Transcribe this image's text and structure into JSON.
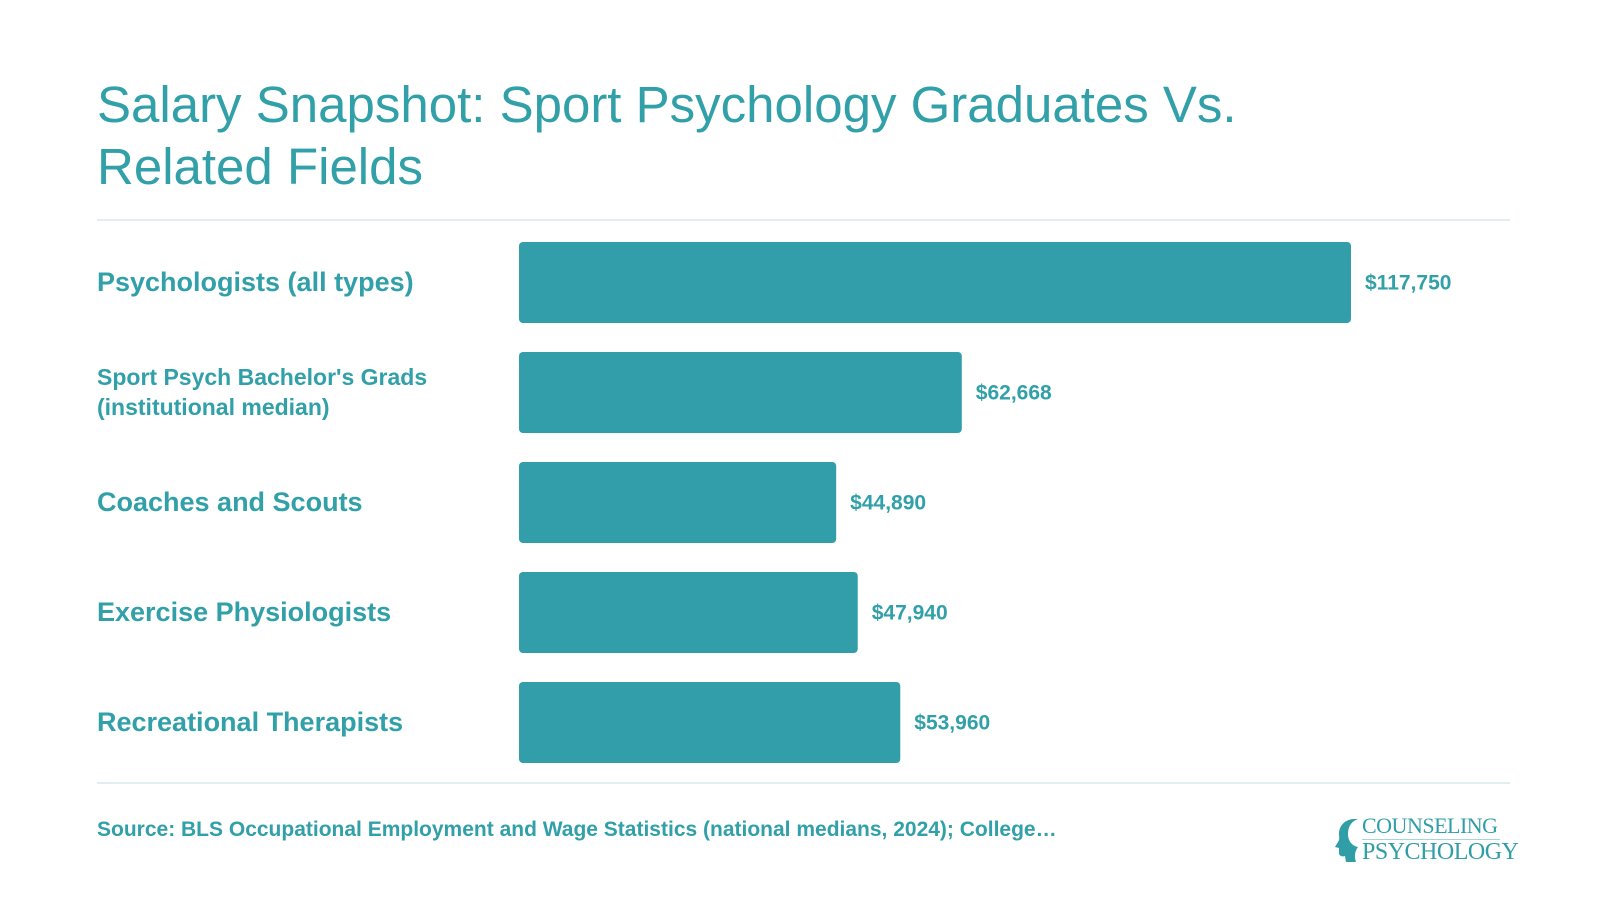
{
  "title": "Salary Snapshot: Sport Psychology Graduates Vs. Related Fields",
  "chart_data": {
    "type": "bar",
    "orientation": "horizontal",
    "categories": [
      "Psychologists (all types)",
      "Sport Psych Bachelor's Grads (institutional median)",
      "Coaches and Scouts",
      "Exercise Physiologists",
      "Recreational Therapists"
    ],
    "values": [
      117750,
      62668,
      44890,
      47940,
      53960
    ],
    "value_labels": [
      "$117,750",
      "$62,668",
      "$44,890",
      "$47,940",
      "$53,960"
    ],
    "xlim": [
      0,
      117750
    ],
    "grid": false,
    "legend": "none",
    "bar_color": "#319ea9"
  },
  "source": "Source: BLS Occupational Employment and Wage Statistics (national medians, 2024); College…",
  "logo": {
    "line1": "COUNSELING",
    "line2": "PSYCHOLOGY"
  },
  "colors": {
    "accent": "#31a0a8",
    "bar": "#319ea9",
    "rule": "#e1edf1"
  }
}
